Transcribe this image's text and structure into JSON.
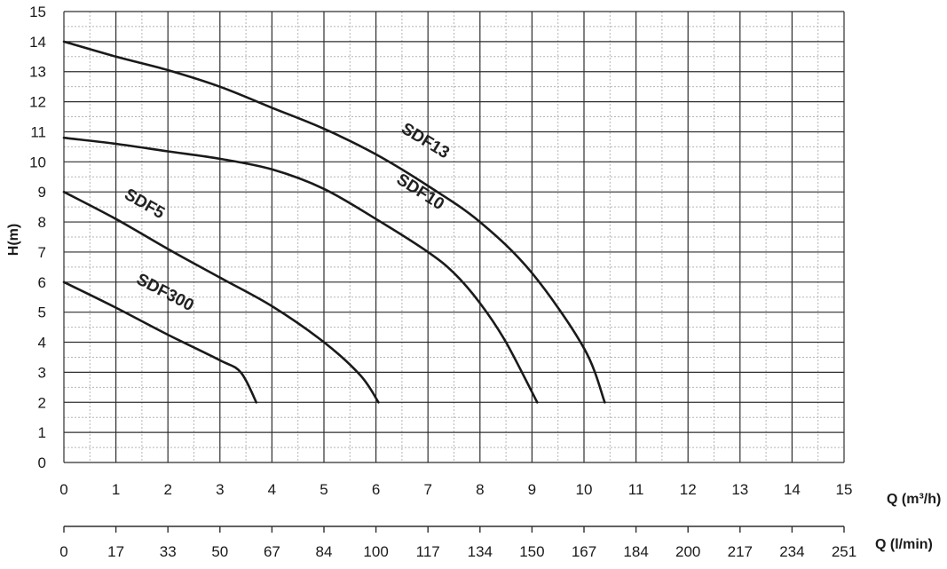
{
  "chart_data": {
    "type": "line",
    "xlabel": "Q (m³/h)",
    "x2label": "Q (l/min)",
    "ylabel": "H(m)",
    "xlim": [
      0,
      15
    ],
    "ylim": [
      0,
      15
    ],
    "grid": true,
    "x_ticks": [
      "0",
      "1",
      "2",
      "3",
      "4",
      "5",
      "6",
      "7",
      "8",
      "9",
      "10",
      "11",
      "12",
      "13",
      "14",
      "15"
    ],
    "x2_ticks": [
      "0",
      "17",
      "33",
      "50",
      "67",
      "84",
      "100",
      "117",
      "134",
      "150",
      "167",
      "184",
      "200",
      "217",
      "234",
      "251"
    ],
    "y_ticks": [
      "0",
      "1",
      "2",
      "3",
      "4",
      "5",
      "6",
      "7",
      "8",
      "9",
      "10",
      "11",
      "12",
      "13",
      "14",
      "15"
    ],
    "series": [
      {
        "name": "SDF300",
        "x": [
          0,
          1,
          2,
          3,
          3.4,
          3.7
        ],
        "y": [
          6,
          5.15,
          4.25,
          3.4,
          3.0,
          2.0
        ]
      },
      {
        "name": "SDF5",
        "x": [
          0,
          1,
          2,
          3,
          4,
          5,
          5.7,
          6.05
        ],
        "y": [
          9,
          8.1,
          7.1,
          6.15,
          5.2,
          4.0,
          2.9,
          2.0
        ]
      },
      {
        "name": "SDF10",
        "x": [
          0,
          1,
          2,
          3,
          4,
          5,
          6,
          7,
          7.5,
          8,
          8.5,
          9.1
        ],
        "y": [
          10.8,
          10.6,
          10.35,
          10.1,
          9.75,
          9.1,
          8.1,
          7.0,
          6.3,
          5.3,
          4.0,
          2.0
        ]
      },
      {
        "name": "SDF13",
        "x": [
          0,
          1,
          2,
          3,
          4,
          5,
          6,
          7,
          8,
          9,
          10,
          10.4
        ],
        "y": [
          14,
          13.5,
          13.05,
          12.5,
          11.8,
          11.1,
          10.25,
          9.2,
          8.0,
          6.3,
          3.8,
          2.0
        ]
      }
    ],
    "annotations": [
      {
        "text": "SDF300",
        "x": 1.9,
        "y": 5.15
      },
      {
        "text": "SDF5",
        "x": 1.5,
        "y": 8.1
      },
      {
        "text": "SDF10",
        "x": 6.8,
        "y": 8.5
      },
      {
        "text": "SDF13",
        "x": 6.9,
        "y": 10.2
      }
    ]
  }
}
